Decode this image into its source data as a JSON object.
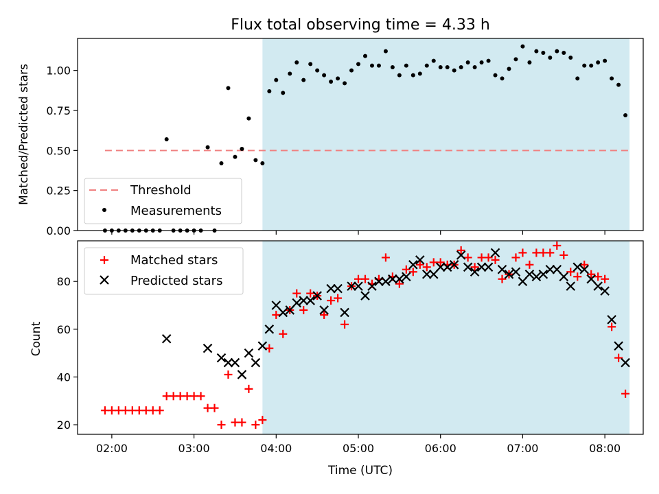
{
  "chart_data": [
    {
      "type": "scatter",
      "title": "Flux total observing time = 4.33 h",
      "xlabel": "",
      "ylabel": "Matched/Predicted stars",
      "xlim": [
        "01:35",
        "08:28"
      ],
      "ylim": [
        0,
        1.2
      ],
      "yticks": [
        "0.00",
        "0.25",
        "0.50",
        "0.75",
        "1.00"
      ],
      "xticks": [
        "02:00",
        "03:00",
        "04:00",
        "05:00",
        "06:00",
        "07:00",
        "08:00"
      ],
      "show_xtick_labels": false,
      "highlight_span": [
        "03:50",
        "08:18"
      ],
      "highlight_color": "#add8e6",
      "threshold": {
        "name": "Threshold",
        "value": 0.5,
        "x_start": "01:55",
        "x_end": "08:18",
        "color": "#f08080"
      },
      "legend": [
        "Threshold",
        "Measurements"
      ],
      "legend_position": "lower left",
      "series": [
        {
          "name": "Measurements",
          "color": "#000000",
          "marker": "dot",
          "points": [
            [
              "01:55",
              0.0
            ],
            [
              "02:00",
              0.0
            ],
            [
              "02:05",
              0.0
            ],
            [
              "02:10",
              0.0
            ],
            [
              "02:15",
              0.0
            ],
            [
              "02:20",
              0.0
            ],
            [
              "02:25",
              0.0
            ],
            [
              "02:30",
              0.0
            ],
            [
              "02:35",
              0.0
            ],
            [
              "02:40",
              0.57
            ],
            [
              "02:45",
              0.0
            ],
            [
              "02:50",
              0.0
            ],
            [
              "02:55",
              0.0
            ],
            [
              "03:00",
              0.0
            ],
            [
              "03:05",
              0.0
            ],
            [
              "03:10",
              0.52
            ],
            [
              "03:15",
              0.0
            ],
            [
              "03:20",
              0.42
            ],
            [
              "03:25",
              0.89
            ],
            [
              "03:30",
              0.46
            ],
            [
              "03:35",
              0.51
            ],
            [
              "03:40",
              0.7
            ],
            [
              "03:45",
              0.44
            ],
            [
              "03:50",
              0.42
            ],
            [
              "03:55",
              0.87
            ],
            [
              "04:00",
              0.94
            ],
            [
              "04:05",
              0.86
            ],
            [
              "04:10",
              0.98
            ],
            [
              "04:15",
              1.05
            ],
            [
              "04:20",
              0.94
            ],
            [
              "04:25",
              1.04
            ],
            [
              "04:30",
              1.0
            ],
            [
              "04:35",
              0.97
            ],
            [
              "04:40",
              0.93
            ],
            [
              "04:45",
              0.95
            ],
            [
              "04:50",
              0.92
            ],
            [
              "04:55",
              1.0
            ],
            [
              "05:00",
              1.04
            ],
            [
              "05:05",
              1.09
            ],
            [
              "05:10",
              1.03
            ],
            [
              "05:15",
              1.03
            ],
            [
              "05:20",
              1.12
            ],
            [
              "05:25",
              1.02
            ],
            [
              "05:30",
              0.97
            ],
            [
              "05:35",
              1.03
            ],
            [
              "05:40",
              0.97
            ],
            [
              "05:45",
              0.98
            ],
            [
              "05:50",
              1.03
            ],
            [
              "05:55",
              1.06
            ],
            [
              "06:00",
              1.02
            ],
            [
              "06:05",
              1.02
            ],
            [
              "06:10",
              1.0
            ],
            [
              "06:15",
              1.02
            ],
            [
              "06:20",
              1.05
            ],
            [
              "06:25",
              1.02
            ],
            [
              "06:30",
              1.05
            ],
            [
              "06:35",
              1.06
            ],
            [
              "06:40",
              0.97
            ],
            [
              "06:45",
              0.95
            ],
            [
              "06:50",
              1.01
            ],
            [
              "06:55",
              1.07
            ],
            [
              "07:00",
              1.15
            ],
            [
              "07:05",
              1.05
            ],
            [
              "07:10",
              1.12
            ],
            [
              "07:15",
              1.11
            ],
            [
              "07:20",
              1.08
            ],
            [
              "07:25",
              1.12
            ],
            [
              "07:30",
              1.11
            ],
            [
              "07:35",
              1.08
            ],
            [
              "07:40",
              0.95
            ],
            [
              "07:45",
              1.03
            ],
            [
              "07:50",
              1.03
            ],
            [
              "07:55",
              1.05
            ],
            [
              "08:00",
              1.06
            ],
            [
              "08:05",
              0.95
            ],
            [
              "08:10",
              0.91
            ],
            [
              "08:15",
              0.72
            ]
          ]
        }
      ]
    },
    {
      "type": "scatter",
      "title": "",
      "xlabel": "Time (UTC)",
      "ylabel": "Count",
      "xlim": [
        "01:35",
        "08:28"
      ],
      "ylim": [
        16,
        97
      ],
      "yticks": [
        "20",
        "40",
        "60",
        "80"
      ],
      "xticks": [
        "02:00",
        "03:00",
        "04:00",
        "05:00",
        "06:00",
        "07:00",
        "08:00"
      ],
      "show_xtick_labels": true,
      "highlight_span": [
        "03:50",
        "08:18"
      ],
      "highlight_color": "#add8e6",
      "legend": [
        "Matched stars",
        "Predicted stars"
      ],
      "legend_position": "upper left",
      "series": [
        {
          "name": "Matched stars",
          "color": "#ff0000",
          "marker": "plus",
          "points": [
            [
              "01:55",
              26
            ],
            [
              "02:00",
              26
            ],
            [
              "02:05",
              26
            ],
            [
              "02:10",
              26
            ],
            [
              "02:15",
              26
            ],
            [
              "02:20",
              26
            ],
            [
              "02:25",
              26
            ],
            [
              "02:30",
              26
            ],
            [
              "02:35",
              26
            ],
            [
              "02:40",
              32
            ],
            [
              "02:45",
              32
            ],
            [
              "02:50",
              32
            ],
            [
              "02:55",
              32
            ],
            [
              "03:00",
              32
            ],
            [
              "03:05",
              32
            ],
            [
              "03:10",
              27
            ],
            [
              "03:15",
              27
            ],
            [
              "03:20",
              20
            ],
            [
              "03:25",
              41
            ],
            [
              "03:30",
              21
            ],
            [
              "03:35",
              21
            ],
            [
              "03:40",
              35
            ],
            [
              "03:45",
              20
            ],
            [
              "03:50",
              22
            ],
            [
              "03:55",
              52
            ],
            [
              "04:00",
              66
            ],
            [
              "04:05",
              58
            ],
            [
              "04:10",
              68
            ],
            [
              "04:15",
              75
            ],
            [
              "04:20",
              68
            ],
            [
              "04:25",
              75
            ],
            [
              "04:30",
              74
            ],
            [
              "04:35",
              66
            ],
            [
              "04:40",
              72
            ],
            [
              "04:45",
              73
            ],
            [
              "04:50",
              62
            ],
            [
              "04:55",
              78
            ],
            [
              "05:00",
              81
            ],
            [
              "05:05",
              81
            ],
            [
              "05:10",
              79
            ],
            [
              "05:15",
              81
            ],
            [
              "05:20",
              90
            ],
            [
              "05:25",
              82
            ],
            [
              "05:30",
              79
            ],
            [
              "05:35",
              85
            ],
            [
              "05:40",
              84
            ],
            [
              "05:45",
              87
            ],
            [
              "05:50",
              86
            ],
            [
              "05:55",
              88
            ],
            [
              "06:00",
              88
            ],
            [
              "06:05",
              87
            ],
            [
              "06:10",
              87
            ],
            [
              "06:15",
              93
            ],
            [
              "06:20",
              90
            ],
            [
              "06:25",
              86
            ],
            [
              "06:30",
              90
            ],
            [
              "06:35",
              90
            ],
            [
              "06:40",
              89
            ],
            [
              "06:45",
              81
            ],
            [
              "06:50",
              83
            ],
            [
              "06:55",
              90
            ],
            [
              "07:00",
              92
            ],
            [
              "07:05",
              87
            ],
            [
              "07:10",
              92
            ],
            [
              "07:15",
              92
            ],
            [
              "07:20",
              92
            ],
            [
              "07:25",
              95
            ],
            [
              "07:30",
              91
            ],
            [
              "07:35",
              84
            ],
            [
              "07:40",
              82
            ],
            [
              "07:45",
              87
            ],
            [
              "07:50",
              83
            ],
            [
              "07:55",
              82
            ],
            [
              "08:00",
              81
            ],
            [
              "08:05",
              61
            ],
            [
              "08:10",
              48
            ],
            [
              "08:15",
              33
            ]
          ]
        },
        {
          "name": "Predicted stars",
          "color": "#000000",
          "marker": "x",
          "points": [
            [
              "02:40",
              56
            ],
            [
              "03:10",
              52
            ],
            [
              "03:20",
              48
            ],
            [
              "03:25",
              46
            ],
            [
              "03:30",
              46
            ],
            [
              "03:35",
              41
            ],
            [
              "03:40",
              50
            ],
            [
              "03:45",
              46
            ],
            [
              "03:50",
              53
            ],
            [
              "03:55",
              60
            ],
            [
              "04:00",
              70
            ],
            [
              "04:05",
              67
            ],
            [
              "04:10",
              68
            ],
            [
              "04:15",
              71
            ],
            [
              "04:20",
              72
            ],
            [
              "04:25",
              72
            ],
            [
              "04:30",
              74
            ],
            [
              "04:35",
              68
            ],
            [
              "04:40",
              77
            ],
            [
              "04:45",
              77
            ],
            [
              "04:50",
              67
            ],
            [
              "04:55",
              78
            ],
            [
              "05:00",
              78
            ],
            [
              "05:05",
              74
            ],
            [
              "05:10",
              78
            ],
            [
              "05:15",
              80
            ],
            [
              "05:20",
              80
            ],
            [
              "05:25",
              81
            ],
            [
              "05:30",
              81
            ],
            [
              "05:35",
              82
            ],
            [
              "05:40",
              87
            ],
            [
              "05:45",
              89
            ],
            [
              "05:50",
              83
            ],
            [
              "05:55",
              83
            ],
            [
              "06:00",
              86
            ],
            [
              "06:05",
              86
            ],
            [
              "06:10",
              87
            ],
            [
              "06:15",
              91
            ],
            [
              "06:20",
              86
            ],
            [
              "06:25",
              84
            ],
            [
              "06:30",
              86
            ],
            [
              "06:35",
              86
            ],
            [
              "06:40",
              92
            ],
            [
              "06:45",
              85
            ],
            [
              "06:50",
              83
            ],
            [
              "06:55",
              84
            ],
            [
              "07:00",
              80
            ],
            [
              "07:05",
              83
            ],
            [
              "07:10",
              82
            ],
            [
              "07:15",
              83
            ],
            [
              "07:20",
              85
            ],
            [
              "07:25",
              85
            ],
            [
              "07:30",
              82
            ],
            [
              "07:35",
              78
            ],
            [
              "07:40",
              86
            ],
            [
              "07:45",
              85
            ],
            [
              "07:50",
              81
            ],
            [
              "07:55",
              78
            ],
            [
              "08:00",
              76
            ],
            [
              "08:05",
              64
            ],
            [
              "08:10",
              53
            ],
            [
              "08:15",
              46
            ]
          ]
        }
      ]
    }
  ]
}
